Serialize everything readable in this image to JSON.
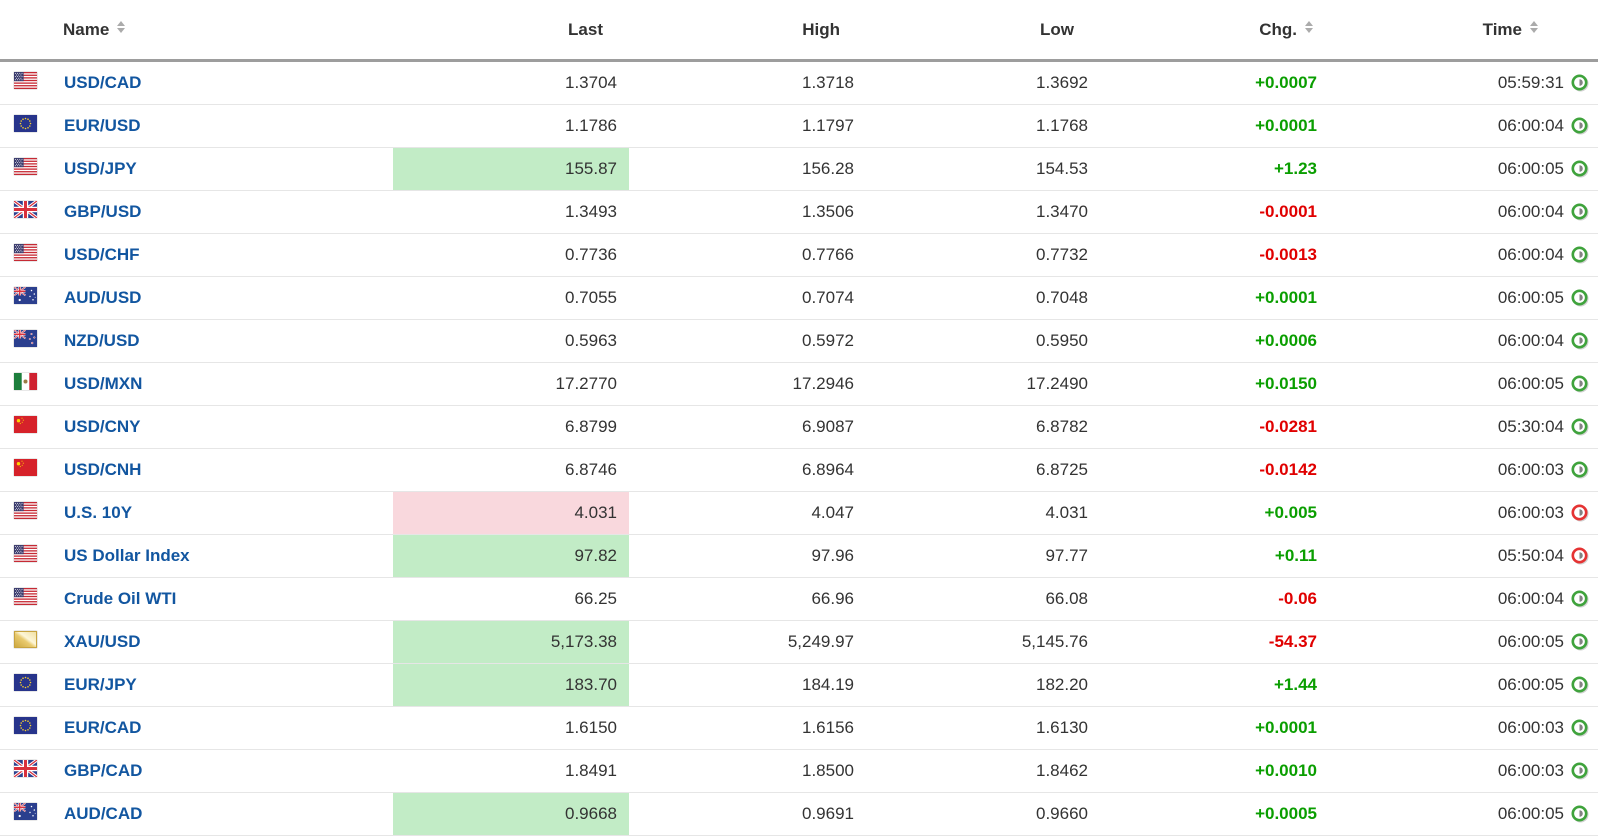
{
  "header": {
    "columns": [
      {
        "key": "name",
        "label": "Name",
        "sortable": true
      },
      {
        "key": "last",
        "label": "Last",
        "sortable": false
      },
      {
        "key": "high",
        "label": "High",
        "sortable": false
      },
      {
        "key": "low",
        "label": "Low",
        "sortable": false
      },
      {
        "key": "chg",
        "label": "Chg.",
        "sortable": true
      },
      {
        "key": "time",
        "label": "Time",
        "sortable": true
      }
    ]
  },
  "colors": {
    "link-blue": "#1256a0",
    "positive-green": "#0a9e00",
    "negative-red": "#e00000",
    "flash-green-bg": "#c2ecc6",
    "flash-red-bg": "#f9d8dd",
    "clock-green": "#3fa33c",
    "clock-red": "#e53333",
    "header-border": "#9d9d9d",
    "row-border": "#e6e6e6"
  },
  "icons": {
    "sort": "up-down-triangles",
    "clock": "green or red ring clock",
    "flags": [
      "us",
      "eu",
      "gb",
      "au",
      "nz",
      "mx",
      "cn",
      "gold"
    ]
  },
  "table": {
    "rows": [
      {
        "flag": "us",
        "name": "USD/CAD",
        "last": "1.3704",
        "high": "1.3718",
        "low": "1.3692",
        "chg": "+0.0007",
        "chg_dir": "up",
        "time": "05:59:31",
        "clock": "green",
        "last_flash": null
      },
      {
        "flag": "eu",
        "name": "EUR/USD",
        "last": "1.1786",
        "high": "1.1797",
        "low": "1.1768",
        "chg": "+0.0001",
        "chg_dir": "up",
        "time": "06:00:04",
        "clock": "green",
        "last_flash": null
      },
      {
        "flag": "us",
        "name": "USD/JPY",
        "last": "155.87",
        "high": "156.28",
        "low": "154.53",
        "chg": "+1.23",
        "chg_dir": "up",
        "time": "06:00:05",
        "clock": "green",
        "last_flash": "up"
      },
      {
        "flag": "gb",
        "name": "GBP/USD",
        "last": "1.3493",
        "high": "1.3506",
        "low": "1.3470",
        "chg": "-0.0001",
        "chg_dir": "down",
        "time": "06:00:04",
        "clock": "green",
        "last_flash": null
      },
      {
        "flag": "us",
        "name": "USD/CHF",
        "last": "0.7736",
        "high": "0.7766",
        "low": "0.7732",
        "chg": "-0.0013",
        "chg_dir": "down",
        "time": "06:00:04",
        "clock": "green",
        "last_flash": null
      },
      {
        "flag": "au",
        "name": "AUD/USD",
        "last": "0.7055",
        "high": "0.7074",
        "low": "0.7048",
        "chg": "+0.0001",
        "chg_dir": "up",
        "time": "06:00:05",
        "clock": "green",
        "last_flash": null
      },
      {
        "flag": "nz",
        "name": "NZD/USD",
        "last": "0.5963",
        "high": "0.5972",
        "low": "0.5950",
        "chg": "+0.0006",
        "chg_dir": "up",
        "time": "06:00:04",
        "clock": "green",
        "last_flash": null
      },
      {
        "flag": "mx",
        "name": "USD/MXN",
        "last": "17.2770",
        "high": "17.2946",
        "low": "17.2490",
        "chg": "+0.0150",
        "chg_dir": "up",
        "time": "06:00:05",
        "clock": "green",
        "last_flash": null
      },
      {
        "flag": "cn",
        "name": "USD/CNY",
        "last": "6.8799",
        "high": "6.9087",
        "low": "6.8782",
        "chg": "-0.0281",
        "chg_dir": "down",
        "time": "05:30:04",
        "clock": "green",
        "last_flash": null
      },
      {
        "flag": "cn",
        "name": "USD/CNH",
        "last": "6.8746",
        "high": "6.8964",
        "low": "6.8725",
        "chg": "-0.0142",
        "chg_dir": "down",
        "time": "06:00:03",
        "clock": "green",
        "last_flash": null
      },
      {
        "flag": "us",
        "name": "U.S. 10Y",
        "last": "4.031",
        "high": "4.047",
        "low": "4.031",
        "chg": "+0.005",
        "chg_dir": "up",
        "time": "06:00:03",
        "clock": "red",
        "last_flash": "down"
      },
      {
        "flag": "us",
        "name": "US Dollar Index",
        "last": "97.82",
        "high": "97.96",
        "low": "97.77",
        "chg": "+0.11",
        "chg_dir": "up",
        "time": "05:50:04",
        "clock": "red",
        "last_flash": "up"
      },
      {
        "flag": "us",
        "name": "Crude Oil WTI",
        "last": "66.25",
        "high": "66.96",
        "low": "66.08",
        "chg": "-0.06",
        "chg_dir": "down",
        "time": "06:00:04",
        "clock": "green",
        "last_flash": null
      },
      {
        "flag": "gold",
        "name": "XAU/USD",
        "last": "5,173.38",
        "high": "5,249.97",
        "low": "5,145.76",
        "chg": "-54.37",
        "chg_dir": "down",
        "time": "06:00:05",
        "clock": "green",
        "last_flash": "up"
      },
      {
        "flag": "eu",
        "name": "EUR/JPY",
        "last": "183.70",
        "high": "184.19",
        "low": "182.20",
        "chg": "+1.44",
        "chg_dir": "up",
        "time": "06:00:05",
        "clock": "green",
        "last_flash": "up"
      },
      {
        "flag": "eu",
        "name": "EUR/CAD",
        "last": "1.6150",
        "high": "1.6156",
        "low": "1.6130",
        "chg": "+0.0001",
        "chg_dir": "up",
        "time": "06:00:03",
        "clock": "green",
        "last_flash": null
      },
      {
        "flag": "gb",
        "name": "GBP/CAD",
        "last": "1.8491",
        "high": "1.8500",
        "low": "1.8462",
        "chg": "+0.0010",
        "chg_dir": "up",
        "time": "06:00:03",
        "clock": "green",
        "last_flash": null
      },
      {
        "flag": "au",
        "name": "AUD/CAD",
        "last": "0.9668",
        "high": "0.9691",
        "low": "0.9660",
        "chg": "+0.0005",
        "chg_dir": "up",
        "time": "06:00:05",
        "clock": "green",
        "last_flash": "up"
      }
    ]
  }
}
